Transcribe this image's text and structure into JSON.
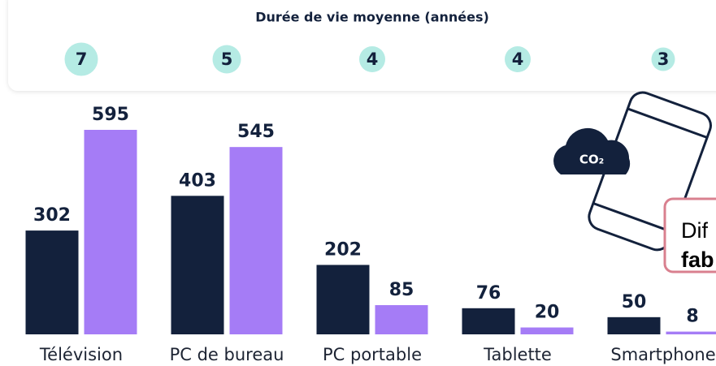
{
  "chart_data": {
    "type": "bar",
    "subtitle": "Durée de vie moyenne (années)",
    "lifespan": [
      7,
      5,
      4,
      4,
      3
    ],
    "categories": [
      "Télévision",
      "PC de bureau",
      "PC portable",
      "Tablette",
      "Smartphone"
    ],
    "series": [
      {
        "color": "#13213c",
        "values": [
          302,
          403,
          202,
          76,
          50
        ]
      },
      {
        "color": "#a57cf6",
        "values": [
          595,
          545,
          85,
          20,
          8
        ]
      }
    ],
    "icon_text": "CO₂",
    "callout": [
      "Dif",
      "fab"
    ]
  }
}
